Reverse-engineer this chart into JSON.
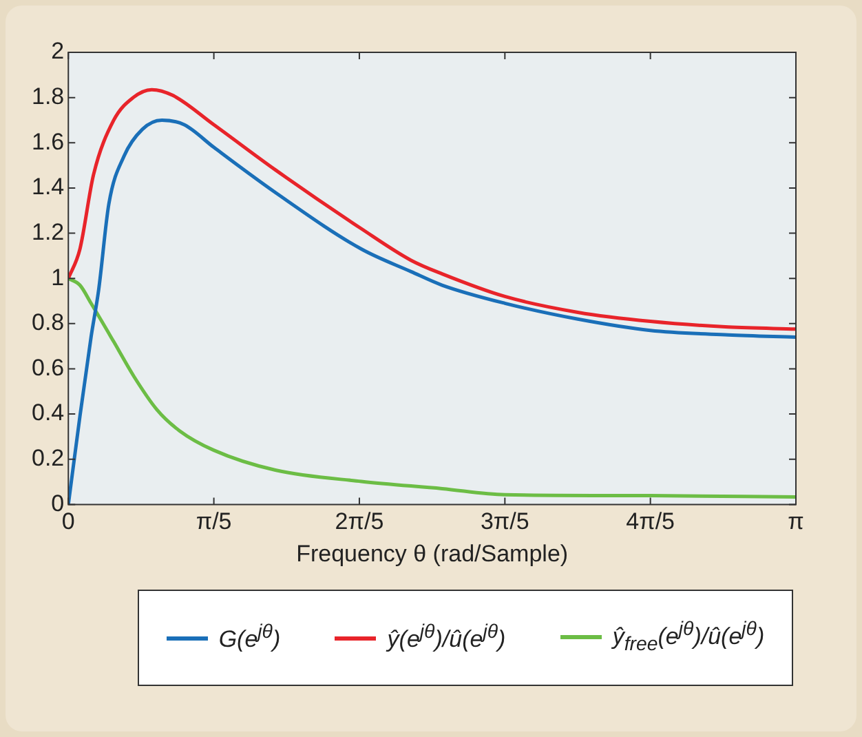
{
  "chart_data": {
    "type": "line",
    "xlabel": "Frequency θ (rad/Sample)",
    "xlim": [
      0,
      3.1416
    ],
    "xticks": [
      0,
      {
        "value": 0.6283,
        "label": "π/5"
      },
      {
        "value": 1.2566,
        "label": "2π/5"
      },
      {
        "value": 1.885,
        "label": "3π/5"
      },
      {
        "value": 2.5133,
        "label": "4π/5"
      },
      {
        "value": 3.1416,
        "label": "π"
      }
    ],
    "ylim": [
      0,
      2
    ],
    "yticks": [
      0,
      0.2,
      0.4,
      0.6,
      0.8,
      1,
      1.2,
      1.4,
      1.6,
      1.8,
      2
    ],
    "grid": false,
    "legend": "bottom",
    "marker": "none",
    "line_style": "solid",
    "series": [
      {
        "name": "G(e$^{jθ}$)",
        "color": "#1a6fb8",
        "x": [
          0,
          0.05,
          0.098,
          0.131,
          0.175,
          0.24,
          0.32,
          0.404,
          0.5,
          0.628,
          0.894,
          1.265,
          1.48,
          1.614,
          1.885,
          2.2,
          2.513,
          2.85,
          3.1416
        ],
        "values": [
          0,
          0.39,
          0.74,
          0.95,
          1.33,
          1.54,
          1.66,
          1.7,
          1.68,
          1.58,
          1.38,
          1.13,
          1.03,
          0.97,
          0.89,
          0.82,
          0.77,
          0.75,
          0.74
        ]
      },
      {
        "name": "ŷ(e$^{jθ}$)/û(e$^{jθ}$)",
        "color": "#e8242a",
        "x": [
          0,
          0.05,
          0.109,
          0.196,
          0.28,
          0.36,
          0.45,
          0.628,
          0.894,
          1.265,
          1.48,
          1.614,
          1.885,
          2.2,
          2.513,
          2.85,
          3.1416
        ],
        "values": [
          1,
          1.13,
          1.46,
          1.7,
          1.8,
          1.835,
          1.81,
          1.68,
          1.48,
          1.22,
          1.08,
          1.02,
          0.92,
          0.85,
          0.81,
          0.785,
          0.776
        ]
      },
      {
        "name": "ŷ$_{free}$(e$^{jθ}$)/û(e$^{jθ}$)",
        "color": "#6cbd45",
        "x": [
          0,
          0.05,
          0.098,
          0.196,
          0.284,
          0.382,
          0.48,
          0.628,
          0.894,
          1.265,
          1.614,
          1.885,
          2.513,
          3.1416
        ],
        "values": [
          1,
          0.97,
          0.89,
          0.72,
          0.565,
          0.42,
          0.326,
          0.24,
          0.152,
          0.102,
          0.07,
          0.043,
          0.039,
          0.033
        ]
      }
    ]
  }
}
